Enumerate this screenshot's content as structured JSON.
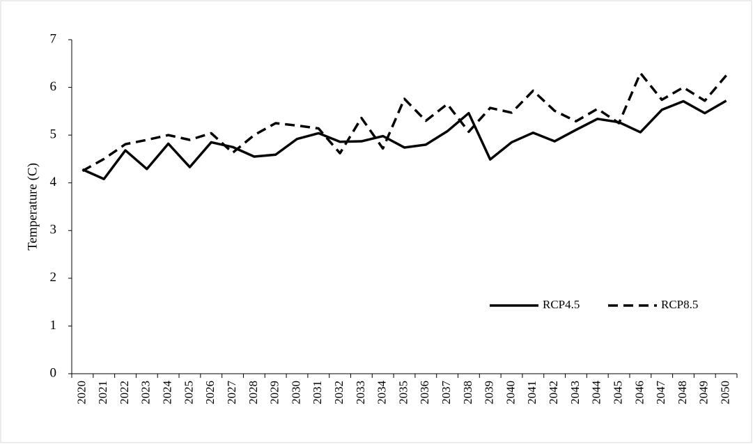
{
  "chart_data": {
    "type": "line",
    "y_label": "Temperature (C)",
    "categories": [
      "2020",
      "2021",
      "2022",
      "2023",
      "2024",
      "2025",
      "2026",
      "2027",
      "2028",
      "2029",
      "2030",
      "2031",
      "2032",
      "2033",
      "2034",
      "2035",
      "2036",
      "2037",
      "2038",
      "2039",
      "2040",
      "2041",
      "2042",
      "2043",
      "2044",
      "2045",
      "2046",
      "2047",
      "2048",
      "2049",
      "2050"
    ],
    "series": [
      {
        "name": "RCP4.5",
        "color": "#000000",
        "style": "solid",
        "values": [
          4.28,
          4.08,
          4.68,
          4.29,
          4.82,
          4.33,
          4.85,
          4.75,
          4.55,
          4.59,
          4.92,
          5.04,
          4.86,
          4.87,
          4.98,
          4.74,
          4.8,
          5.08,
          5.46,
          4.49,
          4.85,
          5.05,
          4.87,
          5.11,
          5.34,
          5.27,
          5.06,
          5.53,
          5.71,
          5.46,
          5.72
        ]
      },
      {
        "name": "RCP8.5",
        "color": "#000000",
        "style": "dashed",
        "values": [
          4.25,
          4.5,
          4.81,
          4.9,
          5.0,
          4.9,
          5.04,
          4.63,
          5.0,
          5.25,
          5.2,
          5.14,
          4.62,
          5.36,
          4.72,
          5.76,
          5.3,
          5.65,
          5.07,
          5.57,
          5.47,
          5.93,
          5.51,
          5.29,
          5.55,
          5.25,
          6.3,
          5.74,
          6.0,
          5.72,
          6.25
        ]
      }
    ],
    "ylim": [
      0,
      7
    ],
    "yticks": [
      0,
      1,
      2,
      3,
      4,
      5,
      6,
      7
    ],
    "grid": false,
    "legend": "lower-right"
  }
}
